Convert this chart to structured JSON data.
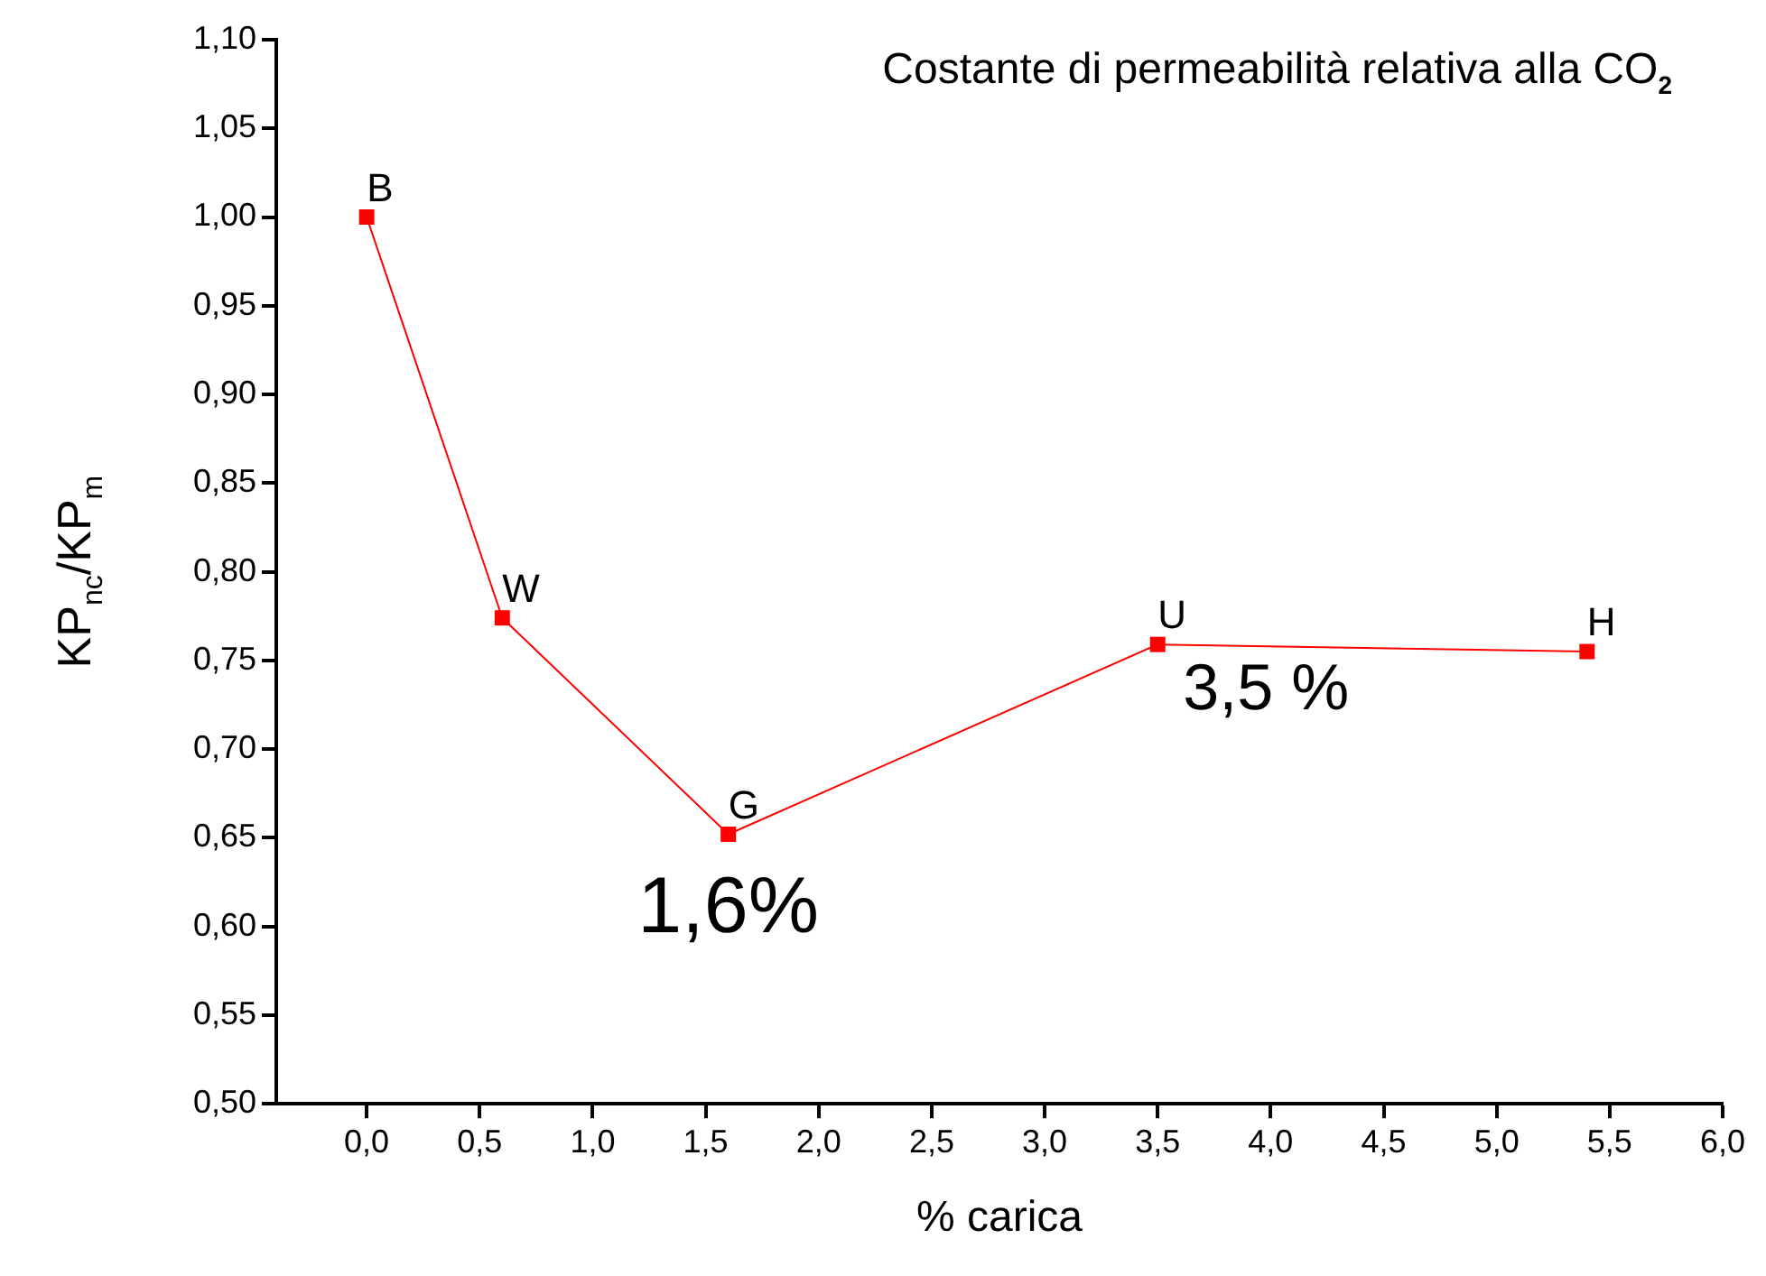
{
  "chart_data": {
    "type": "line",
    "title": "Costante di permeabilità relativa alla CO$_{2}$",
    "xlabel": "% carica",
    "ylabel": "KP$_{nc}$/KP$_{m}$",
    "x": [
      0.0,
      0.6,
      1.6,
      3.5,
      5.4
    ],
    "series": [
      {
        "color": "#ff0000",
        "values": [
          1.0,
          0.774,
          0.652,
          0.759,
          0.755
        ],
        "value_labels": [
          "B",
          "W",
          "G",
          "U",
          "H"
        ]
      }
    ],
    "xlim": [
      -0.4,
      6.0
    ],
    "xticks": [
      {
        "value": 0,
        "label": "0,0"
      },
      {
        "value": 0.5,
        "label": "0,5"
      },
      {
        "value": 1,
        "label": "1,0"
      },
      {
        "value": 1.5,
        "label": "1,5"
      },
      {
        "value": 2,
        "label": "2,0"
      },
      {
        "value": 2.5,
        "label": "2,5"
      },
      {
        "value": 3,
        "label": "3,0"
      },
      {
        "value": 3.5,
        "label": "3,5"
      },
      {
        "value": 4,
        "label": "4,0"
      },
      {
        "value": 4.5,
        "label": "4,5"
      },
      {
        "value": 5,
        "label": "5,0"
      },
      {
        "value": 5.5,
        "label": "5,5"
      },
      {
        "value": 6,
        "label": "6,0"
      }
    ],
    "ylim": [
      0.5,
      1.1
    ],
    "yticks": [
      {
        "value": 0.5,
        "label": "0,50"
      },
      {
        "value": 0.55,
        "label": "0,55"
      },
      {
        "value": 0.6,
        "label": "0,60"
      },
      {
        "value": 0.65,
        "label": "0,65"
      },
      {
        "value": 0.7,
        "label": "0,70"
      },
      {
        "value": 0.75,
        "label": "0,75"
      },
      {
        "value": 0.8,
        "label": "0,80"
      },
      {
        "value": 0.85,
        "label": "0,85"
      },
      {
        "value": 0.9,
        "label": "0,90"
      },
      {
        "value": 0.95,
        "label": "0,95"
      },
      {
        "value": 1.0,
        "label": "1,00"
      },
      {
        "value": 1.05,
        "label": "1,05"
      },
      {
        "value": 1.1,
        "label": "1,10"
      }
    ],
    "annotations": [
      {
        "text": "1,6%",
        "x": 1.6,
        "y": 0.652
      },
      {
        "text": "3,5 %",
        "x": 3.5,
        "y": 0.759
      }
    ],
    "marker": "square",
    "line_style": "solid",
    "grid": false,
    "legend": false
  }
}
